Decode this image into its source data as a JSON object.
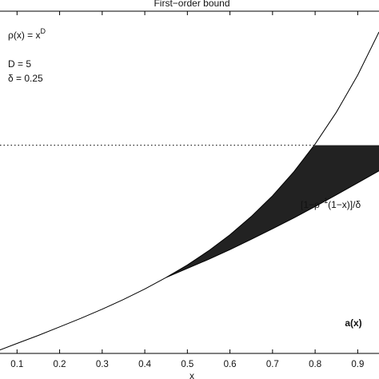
{
  "chart_data": {
    "type": "line",
    "title": "First−order bound",
    "xlabel": "x",
    "ylabel": "",
    "xlim": [
      0.06,
      0.95
    ],
    "ylim": [
      0.0,
      1.2
    ],
    "x_ticks": [
      0.1,
      0.2,
      0.3,
      0.4,
      0.5,
      0.6,
      0.7,
      0.8,
      0.9
    ],
    "x_tick_labels": [
      "0.1",
      "0.2",
      "0.3",
      "0.4",
      "0.5",
      "0.6",
      "0.7",
      "0.8",
      "0.9"
    ],
    "annotations": {
      "rho": "ρ(x) = x",
      "rho_exp": "D",
      "D": "D = 5",
      "delta": "δ = 0.25"
    },
    "series": [
      {
        "label_parts": [
          "[1−ρ",
          "−1",
          "(1−x)]/δ"
        ],
        "kind": "curve",
        "color": "#000000",
        "x": [
          0.06,
          0.1,
          0.15,
          0.2,
          0.25,
          0.3,
          0.35,
          0.4,
          0.45,
          0.5,
          0.55,
          0.6,
          0.65,
          0.7,
          0.75,
          0.8,
          0.85,
          0.9,
          0.95
        ],
        "y": [
          0.012,
          0.035,
          0.063,
          0.093,
          0.123,
          0.155,
          0.189,
          0.226,
          0.266,
          0.31,
          0.36,
          0.416,
          0.48,
          0.553,
          0.637,
          0.734,
          0.846,
          0.976,
          1.127
        ]
      },
      {
        "label": "a(x)",
        "kind": "lower-curve",
        "color": "#000000",
        "x": [
          0.45,
          0.5,
          0.55,
          0.6,
          0.65,
          0.7,
          0.75,
          0.8,
          0.85,
          0.9,
          0.95
        ],
        "y": [
          0.266,
          0.298,
          0.33,
          0.364,
          0.4,
          0.437,
          0.475,
          0.515,
          0.556,
          0.598,
          0.64
        ]
      },
      {
        "kind": "threshold-dotted",
        "y": 0.73
      },
      {
        "kind": "cap-level",
        "y": 0.73
      }
    ],
    "fill_between": {
      "from_series": 0,
      "to_series": 1,
      "x_range": [
        0.45,
        0.95
      ],
      "color": "#222222"
    },
    "grid": false
  }
}
